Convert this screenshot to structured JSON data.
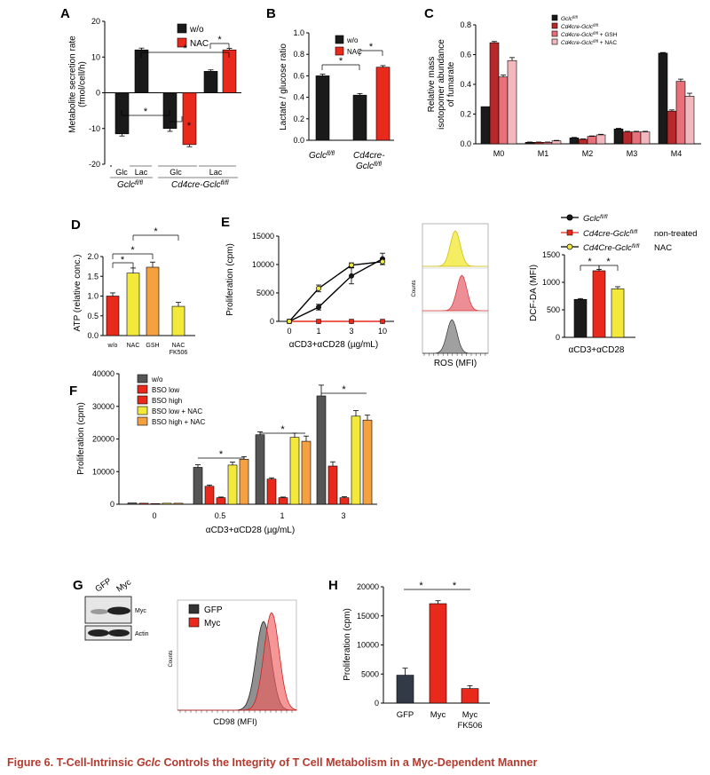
{
  "caption": {
    "prefix": "Figure 6. T-Cell-Intrinsic ",
    "gene": "Gclc",
    "suffix": " Controls the Integrity of T Cell Metabolism in a Myc-Dependent Manner"
  },
  "colors": {
    "black": "#1a1a1a",
    "red": "#e8291c",
    "darkred": "#b8282a",
    "pink": "#e8707a",
    "lightpink": "#f3b8bd",
    "yellow": "#f2e93b",
    "orange": "#f5a142",
    "grey": "#555555",
    "hist_grey": "#888888"
  },
  "chart_data": [
    {
      "id": "A",
      "type": "bar",
      "letter": "A",
      "ylabel": "Metabolite secretion rate\n(fmol/cell/h)",
      "ylim": [
        -20,
        20
      ],
      "ticks": [
        -20,
        -10,
        0,
        10,
        20
      ],
      "legend": [
        "w/o",
        "NAC"
      ],
      "groups": [
        {
          "label": "Glc",
          "values": [
            -11.5
          ],
          "errors": [
            0.6
          ]
        },
        {
          "label": "Lac",
          "values": [
            12.0
          ],
          "errors": [
            0.5
          ]
        },
        {
          "label": "Glc",
          "values": [
            -10.0,
            -14.5
          ],
          "errors": [
            0.8,
            0.6
          ]
        },
        {
          "label": "Lac",
          "values": [
            6.0,
            12.0
          ],
          "errors": [
            0.4,
            0.4
          ]
        }
      ],
      "group_labels": [
        "Gclc",
        "Cd4cre-Gclc"
      ],
      "sup": "fl/fl"
    },
    {
      "id": "B",
      "type": "bar",
      "letter": "B",
      "ylabel": "Lactate / glucose ratio",
      "ylim": [
        0,
        1.0
      ],
      "ticks": [
        "0.0",
        "0.2",
        "0.4",
        "0.6",
        "0.8",
        "1.0"
      ],
      "legend": [
        "w/o",
        "NAC"
      ],
      "values": [
        0.6,
        0.42,
        0.68
      ],
      "errors": [
        0.015,
        0.015,
        0.015
      ],
      "categories": [
        "Gclc",
        "Cd4cre-",
        "Gclc"
      ],
      "sup": "fl/fl"
    },
    {
      "id": "C",
      "type": "bar",
      "letter": "C",
      "ylabel": "Relative mass\nisotopomer abundance\nof fumarate",
      "ylim": [
        0,
        0.8
      ],
      "ticks": [
        "0.0",
        "0.2",
        "0.4",
        "0.6",
        "0.8"
      ],
      "categories": [
        "M0",
        "M1",
        "M2",
        "M3",
        "M4"
      ],
      "legend": [
        "Gclc",
        "Cd4cre-Gclc",
        "Cd4cre-Gclc",
        "Cd4cre-Gclc"
      ],
      "legend_suffix": [
        "",
        "",
        " + GSH",
        " + NAC"
      ],
      "sup": "fl/fl",
      "series": [
        {
          "values": [
            0.25,
            0.01,
            0.04,
            0.1,
            0.61
          ],
          "errors": [
            0,
            0.002,
            0.003,
            0.004,
            0.004
          ]
        },
        {
          "values": [
            0.68,
            0.01,
            0.03,
            0.08,
            0.22
          ],
          "errors": [
            0.008,
            0.002,
            0.003,
            0.004,
            0.008
          ]
        },
        {
          "values": [
            0.45,
            0.01,
            0.05,
            0.08,
            0.42
          ],
          "errors": [
            0.012,
            0.002,
            0.003,
            0.004,
            0.015
          ]
        },
        {
          "values": [
            0.56,
            0.02,
            0.06,
            0.08,
            0.32
          ],
          "errors": [
            0.02,
            0.003,
            0.004,
            0.004,
            0.02
          ]
        }
      ]
    },
    {
      "id": "D",
      "type": "bar",
      "letter": "D",
      "ylabel": "ATP (relative conc.)",
      "ylim": [
        0,
        2.0
      ],
      "ticks": [
        "0.0",
        "0.5",
        "1.0",
        "1.5",
        "2.0"
      ],
      "categories": [
        "w/o",
        "NAC",
        "GSH",
        "NAC"
      ],
      "cat_line2": [
        "",
        "",
        "",
        "FK506"
      ],
      "values": [
        1.0,
        1.58,
        1.73,
        0.74
      ],
      "errors": [
        0.08,
        0.13,
        0.13,
        0.1
      ]
    },
    {
      "id": "E1",
      "type": "line",
      "letter": "E",
      "ylabel": "Proliferation (cpm)",
      "xlabel": "αCD3+αCD28 (µg/mL)",
      "ylim": [
        0,
        15000
      ],
      "ticks": [
        "0",
        "5000",
        "10000",
        "15000"
      ],
      "x_ticks": [
        "0",
        "1",
        "3",
        "10"
      ],
      "series": [
        {
          "values": [
            0,
            2500,
            8000,
            11000
          ],
          "errors": [
            0,
            500,
            1400,
            1000
          ]
        },
        {
          "values": [
            0,
            0,
            0,
            0
          ],
          "errors": [
            0,
            0,
            0,
            0
          ]
        },
        {
          "values": [
            0,
            5800,
            9900,
            10500
          ],
          "errors": [
            0,
            600,
            400,
            500
          ]
        }
      ]
    },
    {
      "id": "E2",
      "type": "area",
      "xlabel": "ROS (MFI)",
      "ylabel": "Counts"
    },
    {
      "id": "E3",
      "type": "bar",
      "ylabel": "DCF-DA (MFI)",
      "xlabel": "αCD3+αCD28",
      "ylim": [
        0,
        1500
      ],
      "ticks": [
        "0",
        "500",
        "1000",
        "1500"
      ],
      "legend": [
        "Gclc",
        "Cd4cre-Gclc",
        "Cd4Cre-Gclc"
      ],
      "legend_right": [
        "",
        "non-treated",
        "NAC"
      ],
      "sup": "fl/fl",
      "values": [
        690,
        1210,
        880
      ],
      "errors": [
        15,
        25,
        40
      ]
    },
    {
      "id": "F",
      "type": "bar",
      "letter": "F",
      "ylabel": "Proliferation (cpm)",
      "xlabel": "αCD3+αCD28 (µg/mL)",
      "ylim": [
        0,
        40000
      ],
      "ticks": [
        "0",
        "10000",
        "20000",
        "30000",
        "40000"
      ],
      "categories": [
        "0",
        "0.5",
        "1",
        "3"
      ],
      "legend": [
        "w/o",
        "BSO low",
        "BSO high",
        "BSO low + NAC",
        "BSO high + NAC"
      ],
      "series": [
        {
          "values": [
            400,
            11300,
            21300,
            33200
          ],
          "errors": [
            100,
            800,
            900,
            3300
          ]
        },
        {
          "values": [
            300,
            5500,
            7700,
            11700
          ],
          "errors": [
            100,
            400,
            400,
            1300
          ]
        },
        {
          "values": [
            200,
            2000,
            2000,
            2000
          ],
          "errors": [
            50,
            200,
            200,
            300
          ]
        },
        {
          "values": [
            300,
            12000,
            20500,
            27000
          ],
          "errors": [
            100,
            900,
            1300,
            1700
          ]
        },
        {
          "values": [
            300,
            13800,
            19300,
            25800
          ],
          "errors": [
            100,
            800,
            1600,
            1500
          ]
        }
      ]
    },
    {
      "id": "G",
      "type": "table",
      "letter": "G",
      "lanes": [
        "GFP",
        "Myc"
      ],
      "bands": [
        "Myc",
        "Actin"
      ]
    },
    {
      "id": "G2",
      "type": "area",
      "xlabel": "CD98 (MFI)",
      "ylabel": "Counts",
      "legend": [
        "GFP",
        "Myc"
      ]
    },
    {
      "id": "H",
      "type": "bar",
      "letter": "H",
      "ylabel": "Proliferation (cpm)",
      "ylim": [
        0,
        20000
      ],
      "ticks": [
        "0",
        "5000",
        "10000",
        "15000",
        "20000"
      ],
      "categories": [
        "GFP",
        "Myc",
        "Myc"
      ],
      "cat_line2": [
        "",
        "",
        "FK506"
      ],
      "values": [
        4800,
        17100,
        2500
      ],
      "errors": [
        1200,
        500,
        500
      ]
    }
  ]
}
